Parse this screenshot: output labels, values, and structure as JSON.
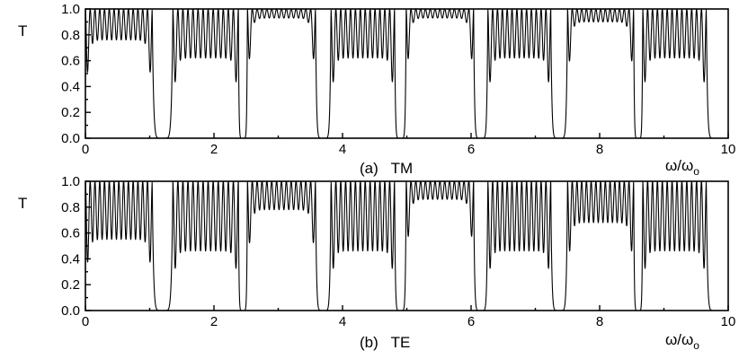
{
  "chart_data": [
    {
      "type": "line",
      "panel": "top",
      "caption": "(a)   TM",
      "ylabel": "T",
      "xlabel_main": "ω/ω",
      "xlabel_sub": "o",
      "xlim": [
        0,
        10
      ],
      "ylim": [
        0,
        1.0
      ],
      "xticks": [
        "0",
        "2",
        "4",
        "6",
        "8",
        "10"
      ],
      "yticks": [
        "0.0",
        "0.2",
        "0.4",
        "0.6",
        "0.8",
        "1.0"
      ],
      "stop_bands": [
        {
          "center": 1.2,
          "halfwidth": 0.16
        },
        {
          "center": 2.45,
          "halfwidth": 0.07
        },
        {
          "center": 3.7,
          "halfwidth": 0.12
        },
        {
          "center": 4.9,
          "halfwidth": 0.09
        },
        {
          "center": 6.15,
          "halfwidth": 0.11
        },
        {
          "center": 7.37,
          "halfwidth": 0.13
        },
        {
          "center": 8.6,
          "halfwidth": 0.07
        },
        {
          "center": 9.8,
          "halfwidth": 0.14
        }
      ],
      "pass_bands": [
        {
          "start": 0.0,
          "end": 1.04,
          "min_level": 0.76,
          "oscillations": 14
        },
        {
          "start": 1.36,
          "end": 2.38,
          "min_level": 0.62,
          "oscillations": 13
        },
        {
          "start": 2.52,
          "end": 3.58,
          "min_level": 0.93,
          "oscillations": 14
        },
        {
          "start": 3.82,
          "end": 4.81,
          "min_level": 0.62,
          "oscillations": 13
        },
        {
          "start": 4.99,
          "end": 6.04,
          "min_level": 0.93,
          "oscillations": 14
        },
        {
          "start": 6.26,
          "end": 7.24,
          "min_level": 0.62,
          "oscillations": 13
        },
        {
          "start": 7.5,
          "end": 8.53,
          "min_level": 0.9,
          "oscillations": 14
        },
        {
          "start": 8.67,
          "end": 9.66,
          "min_level": 0.62,
          "oscillations": 13
        }
      ]
    },
    {
      "type": "line",
      "panel": "bottom",
      "caption": "(b)   TE",
      "ylabel": "T",
      "xlabel_main": "ω/ω",
      "xlabel_sub": "o",
      "xlim": [
        0,
        10
      ],
      "ylim": [
        0,
        1.0
      ],
      "xticks": [
        "0",
        "2",
        "4",
        "6",
        "8",
        "10"
      ],
      "yticks": [
        "0.0",
        "0.2",
        "0.4",
        "0.6",
        "0.8",
        "1.0"
      ],
      "stop_bands": [
        {
          "center": 1.2,
          "halfwidth": 0.16
        },
        {
          "center": 2.45,
          "halfwidth": 0.07
        },
        {
          "center": 3.7,
          "halfwidth": 0.12
        },
        {
          "center": 4.9,
          "halfwidth": 0.09
        },
        {
          "center": 6.15,
          "halfwidth": 0.11
        },
        {
          "center": 7.37,
          "halfwidth": 0.13
        },
        {
          "center": 8.6,
          "halfwidth": 0.07
        },
        {
          "center": 9.8,
          "halfwidth": 0.14
        }
      ],
      "pass_bands": [
        {
          "start": 0.0,
          "end": 1.04,
          "min_level": 0.55,
          "oscillations": 14
        },
        {
          "start": 1.36,
          "end": 2.38,
          "min_level": 0.46,
          "oscillations": 13
        },
        {
          "start": 2.52,
          "end": 3.58,
          "min_level": 0.78,
          "oscillations": 14
        },
        {
          "start": 3.82,
          "end": 4.81,
          "min_level": 0.46,
          "oscillations": 13
        },
        {
          "start": 4.99,
          "end": 6.04,
          "min_level": 0.86,
          "oscillations": 14
        },
        {
          "start": 6.26,
          "end": 7.24,
          "min_level": 0.46,
          "oscillations": 13
        },
        {
          "start": 7.5,
          "end": 8.53,
          "min_level": 0.68,
          "oscillations": 14
        },
        {
          "start": 8.67,
          "end": 9.66,
          "min_level": 0.46,
          "oscillations": 13
        }
      ]
    }
  ]
}
